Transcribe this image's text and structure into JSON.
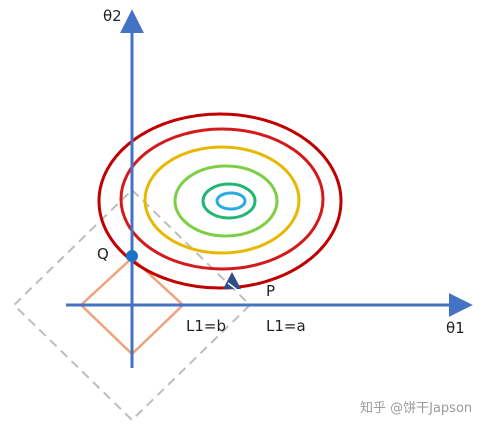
{
  "labels": {
    "y_axis": "θ2",
    "x_axis": "θ1",
    "point_q": "Q",
    "point_p": "P",
    "constraint_b": "L1=b",
    "constraint_a": "L1=a"
  },
  "watermark": "知乎 @饼干Japson",
  "colors": {
    "axis": "#4472c4",
    "small_diamond": "#f0a27a",
    "large_diamond": "#bdbdbd",
    "contours": [
      "#c00000",
      "#d41b1b",
      "#e6b800",
      "#7ccf45",
      "#22b573",
      "#29abe2"
    ],
    "point_q": "#1a73c8",
    "point_p": "#2f4d8a"
  }
}
